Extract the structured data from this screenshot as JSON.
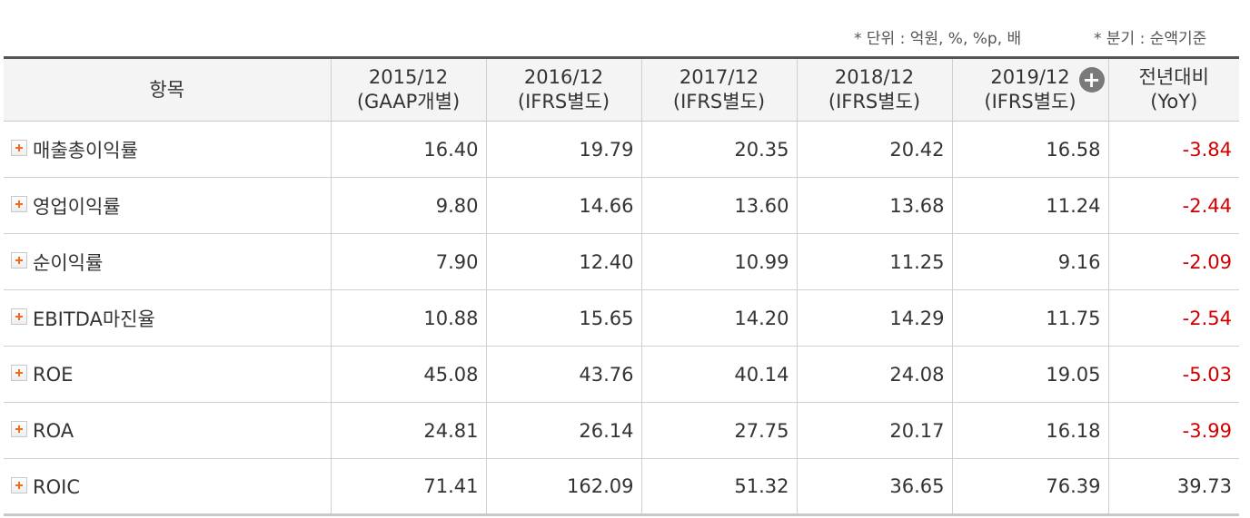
{
  "notes": {
    "unit": "* 단위 : 억원, %, %p, 배",
    "quarter": "* 분기 : 순액기준"
  },
  "header": {
    "item": "항목",
    "periods": [
      {
        "year": "2015/12",
        "basis": "(GAAP개별)"
      },
      {
        "year": "2016/12",
        "basis": "(IFRS별도)"
      },
      {
        "year": "2017/12",
        "basis": "(IFRS별도)"
      },
      {
        "year": "2018/12",
        "basis": "(IFRS별도)"
      },
      {
        "year": "2019/12",
        "basis": "(IFRS별도)"
      }
    ],
    "yoy": {
      "line1": "전년대비",
      "line2": "(YoY)"
    },
    "expand_icon": "plus-circle-icon"
  },
  "rows": [
    {
      "label": "매출총이익률",
      "values": [
        "16.40",
        "19.79",
        "20.35",
        "20.42",
        "16.58"
      ],
      "yoy": "-3.84"
    },
    {
      "label": "영업이익률",
      "values": [
        "9.80",
        "14.66",
        "13.60",
        "13.68",
        "11.24"
      ],
      "yoy": "-2.44"
    },
    {
      "label": "순이익률",
      "values": [
        "7.90",
        "12.40",
        "10.99",
        "11.25",
        "9.16"
      ],
      "yoy": "-2.09"
    },
    {
      "label": "EBITDA마진율",
      "values": [
        "10.88",
        "15.65",
        "14.20",
        "14.29",
        "11.75"
      ],
      "yoy": "-2.54"
    },
    {
      "label": "ROE",
      "values": [
        "45.08",
        "43.76",
        "40.14",
        "24.08",
        "19.05"
      ],
      "yoy": "-5.03"
    },
    {
      "label": "ROA",
      "values": [
        "24.81",
        "26.14",
        "27.75",
        "20.17",
        "16.18"
      ],
      "yoy": "-3.99"
    },
    {
      "label": "ROIC",
      "values": [
        "71.41",
        "162.09",
        "51.32",
        "36.65",
        "76.39"
      ],
      "yoy": "39.73"
    }
  ],
  "colors": {
    "negative": "#d10000",
    "expand_plus": "#ef6c1c"
  }
}
